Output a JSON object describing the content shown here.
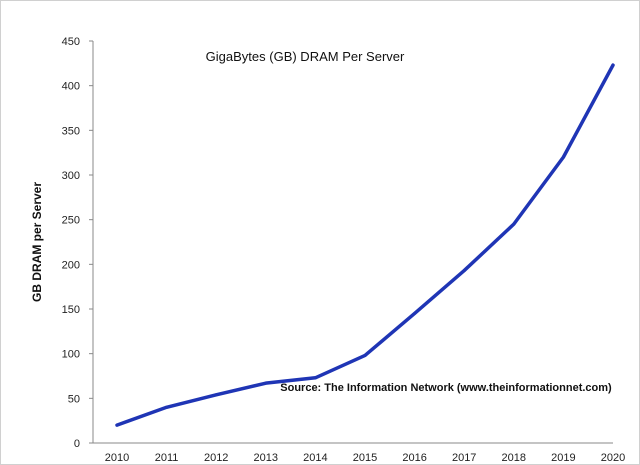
{
  "chart_data": {
    "type": "line",
    "title": "GigaBytes (GB) DRAM Per Server",
    "xlabel": "",
    "ylabel": "GB DRAM per Server",
    "annotation": "Source: The Information  Network (www.theinformationnet.com)",
    "categories": [
      "2010",
      "2011",
      "2012",
      "2013",
      "2014",
      "2015",
      "2016",
      "2017",
      "2018",
      "2019",
      "2020"
    ],
    "series": [
      {
        "name": "",
        "color": "#1f35b5",
        "values": [
          20,
          40,
          54,
          67,
          73,
          98,
          145,
          193,
          245,
          320,
          423
        ]
      }
    ],
    "ylim": [
      0,
      450
    ],
    "yticks": [
      0,
      50,
      100,
      150,
      200,
      250,
      300,
      350,
      400,
      450
    ],
    "grid": false,
    "legend": "none"
  }
}
